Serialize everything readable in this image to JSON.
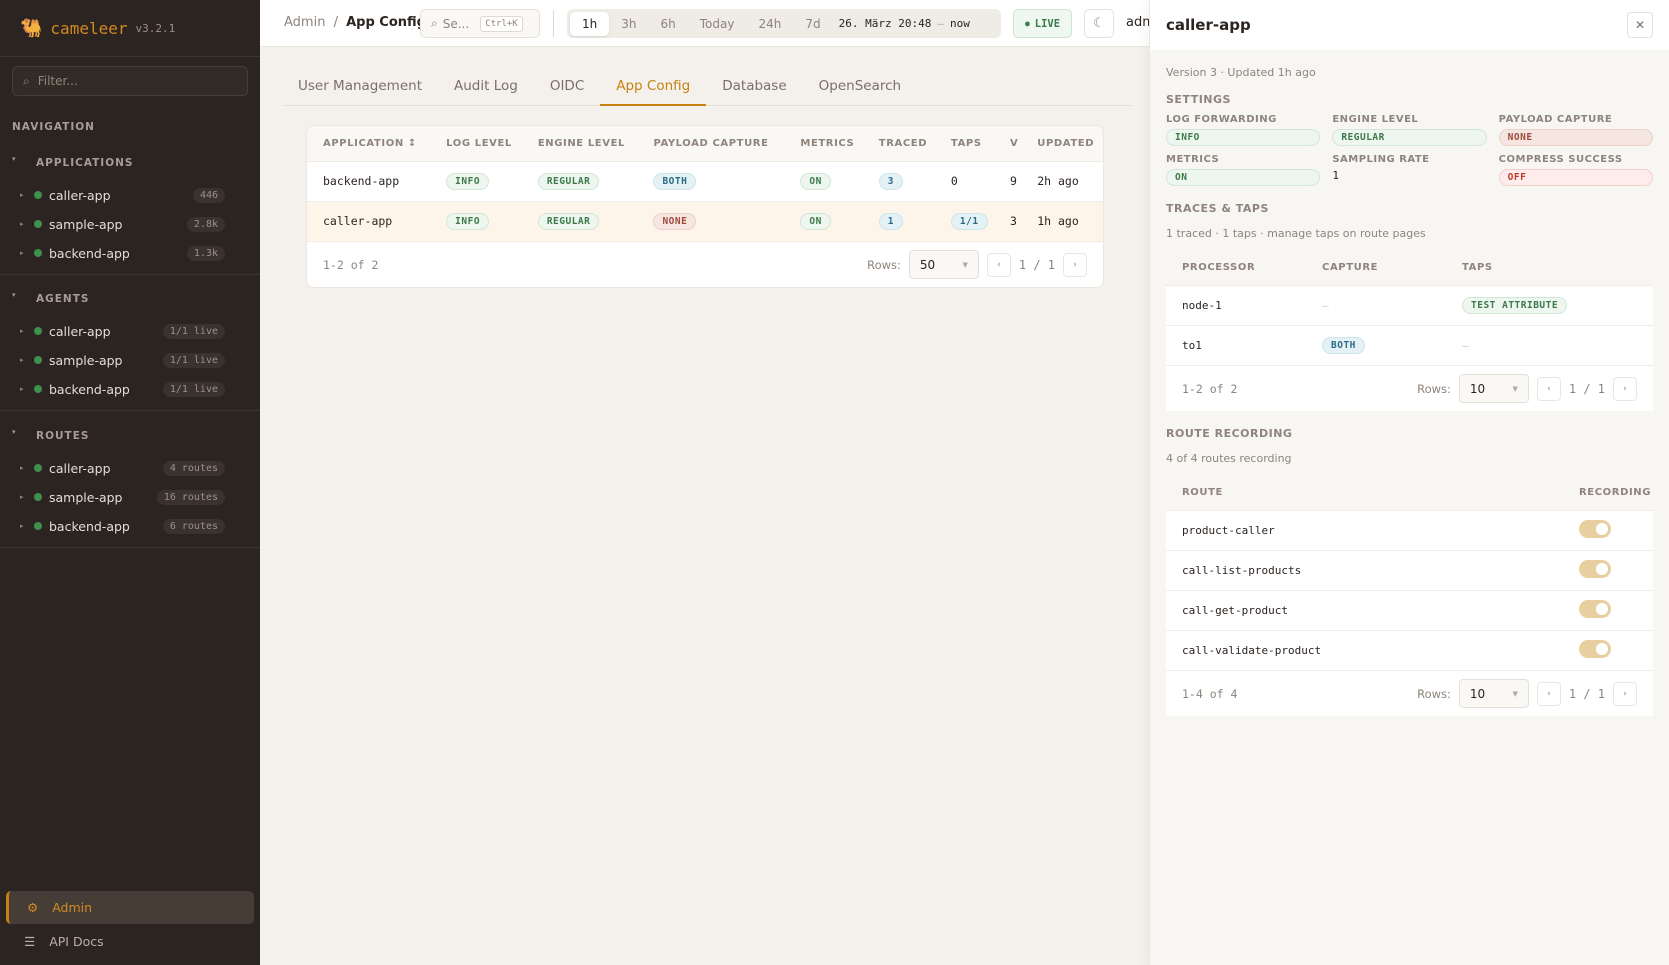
{
  "app": {
    "name": "cameleer",
    "version": "v3.2.1"
  },
  "sidebar": {
    "filter_placeholder": "Filter...",
    "navigation_label": "NAVIGATION",
    "sections": [
      {
        "label": "APPLICATIONS",
        "items": [
          {
            "name": "caller-app",
            "badge": "446"
          },
          {
            "name": "sample-app",
            "badge": "2.8k"
          },
          {
            "name": "backend-app",
            "badge": "1.3k"
          }
        ]
      },
      {
        "label": "AGENTS",
        "items": [
          {
            "name": "caller-app",
            "badge": "1/1 live"
          },
          {
            "name": "sample-app",
            "badge": "1/1 live"
          },
          {
            "name": "backend-app",
            "badge": "1/1 live"
          }
        ]
      },
      {
        "label": "ROUTES",
        "items": [
          {
            "name": "caller-app",
            "badge": "4 routes"
          },
          {
            "name": "sample-app",
            "badge": "16 routes"
          },
          {
            "name": "backend-app",
            "badge": "6 routes"
          }
        ]
      }
    ],
    "admin": "Admin",
    "api_docs": "API Docs"
  },
  "topbar": {
    "crumb_parent": "Admin",
    "crumb_sep": "/",
    "crumb_current": "App Config",
    "search_placeholder": "Se...",
    "search_shortcut": "Ctrl+K",
    "ranges": [
      "1h",
      "3h",
      "6h",
      "Today",
      "24h",
      "7d"
    ],
    "active_range": "1h",
    "date_from": "26. März 20:48",
    "date_sep": "—",
    "date_to": "now",
    "live": "LIVE",
    "user": "admin"
  },
  "tabs": [
    "User Management",
    "Audit Log",
    "OIDC",
    "App Config",
    "Database",
    "OpenSearch"
  ],
  "active_tab": "App Config",
  "table": {
    "headers": [
      "APPLICATION ↕",
      "LOG LEVEL",
      "ENGINE LEVEL",
      "PAYLOAD CAPTURE",
      "METRICS",
      "TRACED",
      "TAPS",
      "V",
      "UPDATED"
    ],
    "rows": [
      {
        "app": "backend-app",
        "log": "INFO",
        "engine": "REGULAR",
        "payload": "BOTH",
        "metrics": "ON",
        "traced": "3",
        "taps": "0",
        "v": "9",
        "updated": "2h ago",
        "selected": false
      },
      {
        "app": "caller-app",
        "log": "INFO",
        "engine": "REGULAR",
        "payload": "NONE",
        "metrics": "ON",
        "traced": "1",
        "taps": "1/1",
        "v": "3",
        "updated": "1h ago",
        "selected": true
      }
    ],
    "count": "1-2 of 2",
    "rows_label": "Rows:",
    "rows_value": "50",
    "page": "1 / 1"
  },
  "panel": {
    "title": "caller-app",
    "meta": "Version 3 · Updated 1h ago",
    "settings_label": "SETTINGS",
    "settings": [
      {
        "label": "LOG FORWARDING",
        "value": "INFO",
        "style": "green"
      },
      {
        "label": "ENGINE LEVEL",
        "value": "REGULAR",
        "style": "green"
      },
      {
        "label": "PAYLOAD CAPTURE",
        "value": "NONE",
        "style": "red"
      },
      {
        "label": "METRICS",
        "value": "ON",
        "style": "green"
      },
      {
        "label": "SAMPLING RATE",
        "value": "1",
        "style": "text"
      },
      {
        "label": "COMPRESS SUCCESS",
        "value": "OFF",
        "style": "off"
      }
    ],
    "traces_label": "TRACES & TAPS",
    "traces_meta": "1 traced · 1 taps · manage taps on route pages",
    "traces_headers": [
      "PROCESSOR",
      "CAPTURE",
      "TAPS"
    ],
    "traces_rows": [
      {
        "processor": "node-1",
        "capture": "—",
        "taps": "TEST ATTRIBUTE"
      },
      {
        "processor": "to1",
        "capture": "BOTH",
        "taps": "—"
      }
    ],
    "traces_count": "1-2 of 2",
    "traces_rows_value": "10",
    "traces_page": "1 / 1",
    "routes_label": "ROUTE RECORDING",
    "routes_meta": "4 of 4 routes recording",
    "routes_headers": [
      "ROUTE",
      "RECORDING"
    ],
    "routes": [
      {
        "name": "product-caller",
        "recording": true
      },
      {
        "name": "call-list-products",
        "recording": true
      },
      {
        "name": "call-get-product",
        "recording": true
      },
      {
        "name": "call-validate-product",
        "recording": true
      }
    ],
    "routes_count": "1-4 of 4",
    "routes_rows_value": "10",
    "routes_page": "1 / 1",
    "rows_label": "Rows:"
  },
  "colors": {
    "accent": "#c6820f",
    "sidebar": "#2b2420",
    "status_green": "#3f8f4f"
  }
}
